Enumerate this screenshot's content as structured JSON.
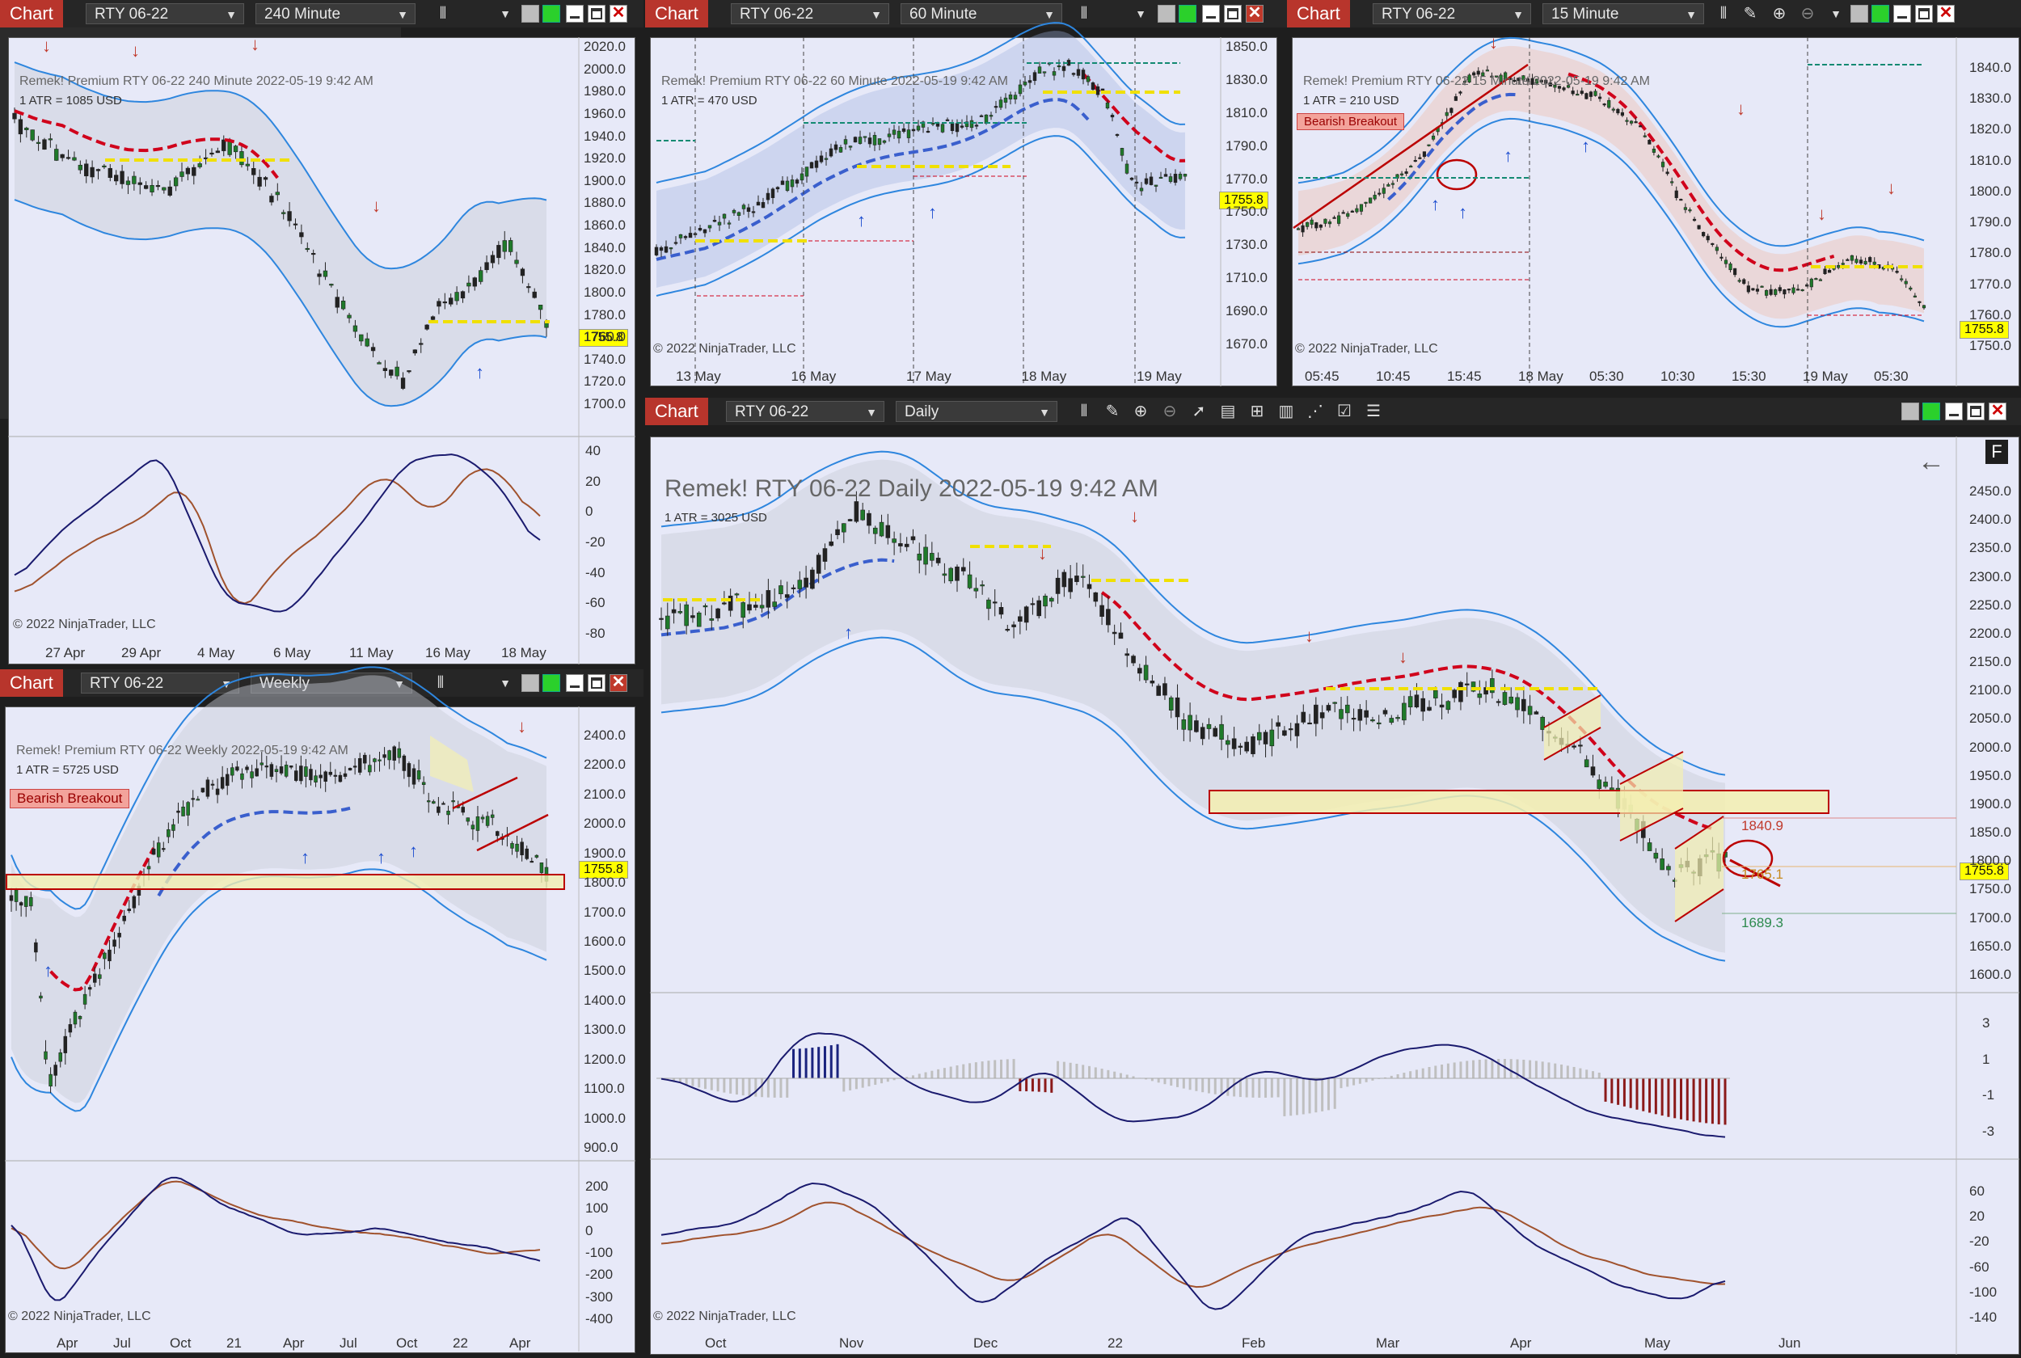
{
  "window_label": "Chart",
  "instrument": "RTY 06-22",
  "last_price": "1755.8",
  "copyright": "© 2022 NinjaTrader, LLC",
  "c240": {
    "interval": "240 Minute",
    "title": "Remek!  Premium  RTY 06-22  240 Minute  2022-05-19 9:42 AM",
    "atr": "1 ATR = 1085 USD",
    "price_ticks": [
      "2020.0",
      "2000.0",
      "1980.0",
      "1960.0",
      "1940.0",
      "1920.0",
      "1900.0",
      "1880.0",
      "1860.0",
      "1840.0",
      "1820.0",
      "1800.0",
      "1780.0",
      "1760.0",
      "1740.0",
      "1720.0",
      "1700.0"
    ],
    "osc_ticks": [
      "40",
      "20",
      "0",
      "-20",
      "-40",
      "-60",
      "-80"
    ],
    "dates": [
      "27 Apr",
      "29 Apr",
      "4 May",
      "6 May",
      "11 May",
      "16 May",
      "18 May"
    ]
  },
  "c60": {
    "interval": "60 Minute",
    "title": "Remek!  Premium  RTY 06-22  60 Minute  2022-05-19 9:42 AM",
    "atr": "1 ATR = 470 USD",
    "price_ticks": [
      "1850.0",
      "1830.0",
      "1810.0",
      "1790.0",
      "1770.0",
      "1750.0",
      "1730.0",
      "1710.0",
      "1690.0",
      "1670.0"
    ],
    "dates": [
      "13 May",
      "16 May",
      "17 May",
      "18 May",
      "19 May"
    ]
  },
  "c15": {
    "interval": "15 Minute",
    "title": "Remek!  Premium  RTY 06-22  15 Minute  2022-05-19 9:42 AM",
    "atr": "1 ATR = 210 USD",
    "signal": "Bearish Breakout",
    "price_ticks": [
      "1840.0",
      "1830.0",
      "1820.0",
      "1810.0",
      "1800.0",
      "1790.0",
      "1780.0",
      "1770.0",
      "1760.0",
      "1750.0"
    ],
    "dates": [
      "05:45",
      "10:45",
      "15:45",
      "18 May",
      "05:30",
      "10:30",
      "15:30",
      "19 May",
      "05:30"
    ]
  },
  "cw": {
    "interval": "Weekly",
    "title": "Remek!  Premium  RTY 06-22  Weekly  2022-05-19 9:42 AM",
    "atr": "1 ATR = 5725 USD",
    "signal": "Bearish Breakout",
    "price_ticks": [
      "2400.0",
      "2200.0",
      "2100.0",
      "2000.0",
      "1900.0",
      "1800.0",
      "1700.0",
      "1600.0",
      "1500.0",
      "1400.0",
      "1300.0",
      "1200.0",
      "1100.0",
      "1000.0",
      "900.0"
    ],
    "osc_ticks": [
      "200",
      "100",
      "0",
      "-100",
      "-200",
      "-300",
      "-400"
    ],
    "dates": [
      "Apr",
      "Jul",
      "Oct",
      "21",
      "Apr",
      "Jul",
      "Oct",
      "22",
      "Apr"
    ]
  },
  "cd": {
    "interval": "Daily",
    "title": "Remek!  RTY 06-22  Daily  2022-05-19 9:42 AM",
    "atr": "1 ATR = 3025 USD",
    "level_top": "1840.9",
    "level_mid": "1765.1",
    "level_bottom": "1689.3",
    "panel_letter": "F",
    "price_ticks": [
      "2450.0",
      "2400.0",
      "2350.0",
      "2300.0",
      "2250.0",
      "2200.0",
      "2150.0",
      "2100.0",
      "2050.0",
      "2000.0",
      "1950.0",
      "1900.0",
      "1850.0",
      "1800.0",
      "1750.0",
      "1700.0",
      "1650.0",
      "1600.0"
    ],
    "hist_ticks": [
      "3",
      "1",
      "-1",
      "-3"
    ],
    "osc_ticks": [
      "60",
      "20",
      "-20",
      "-60",
      "-100",
      "-140"
    ],
    "dates": [
      "Oct",
      "Nov",
      "Dec",
      "22",
      "Feb",
      "Mar",
      "Apr",
      "May",
      "Jun"
    ]
  }
}
